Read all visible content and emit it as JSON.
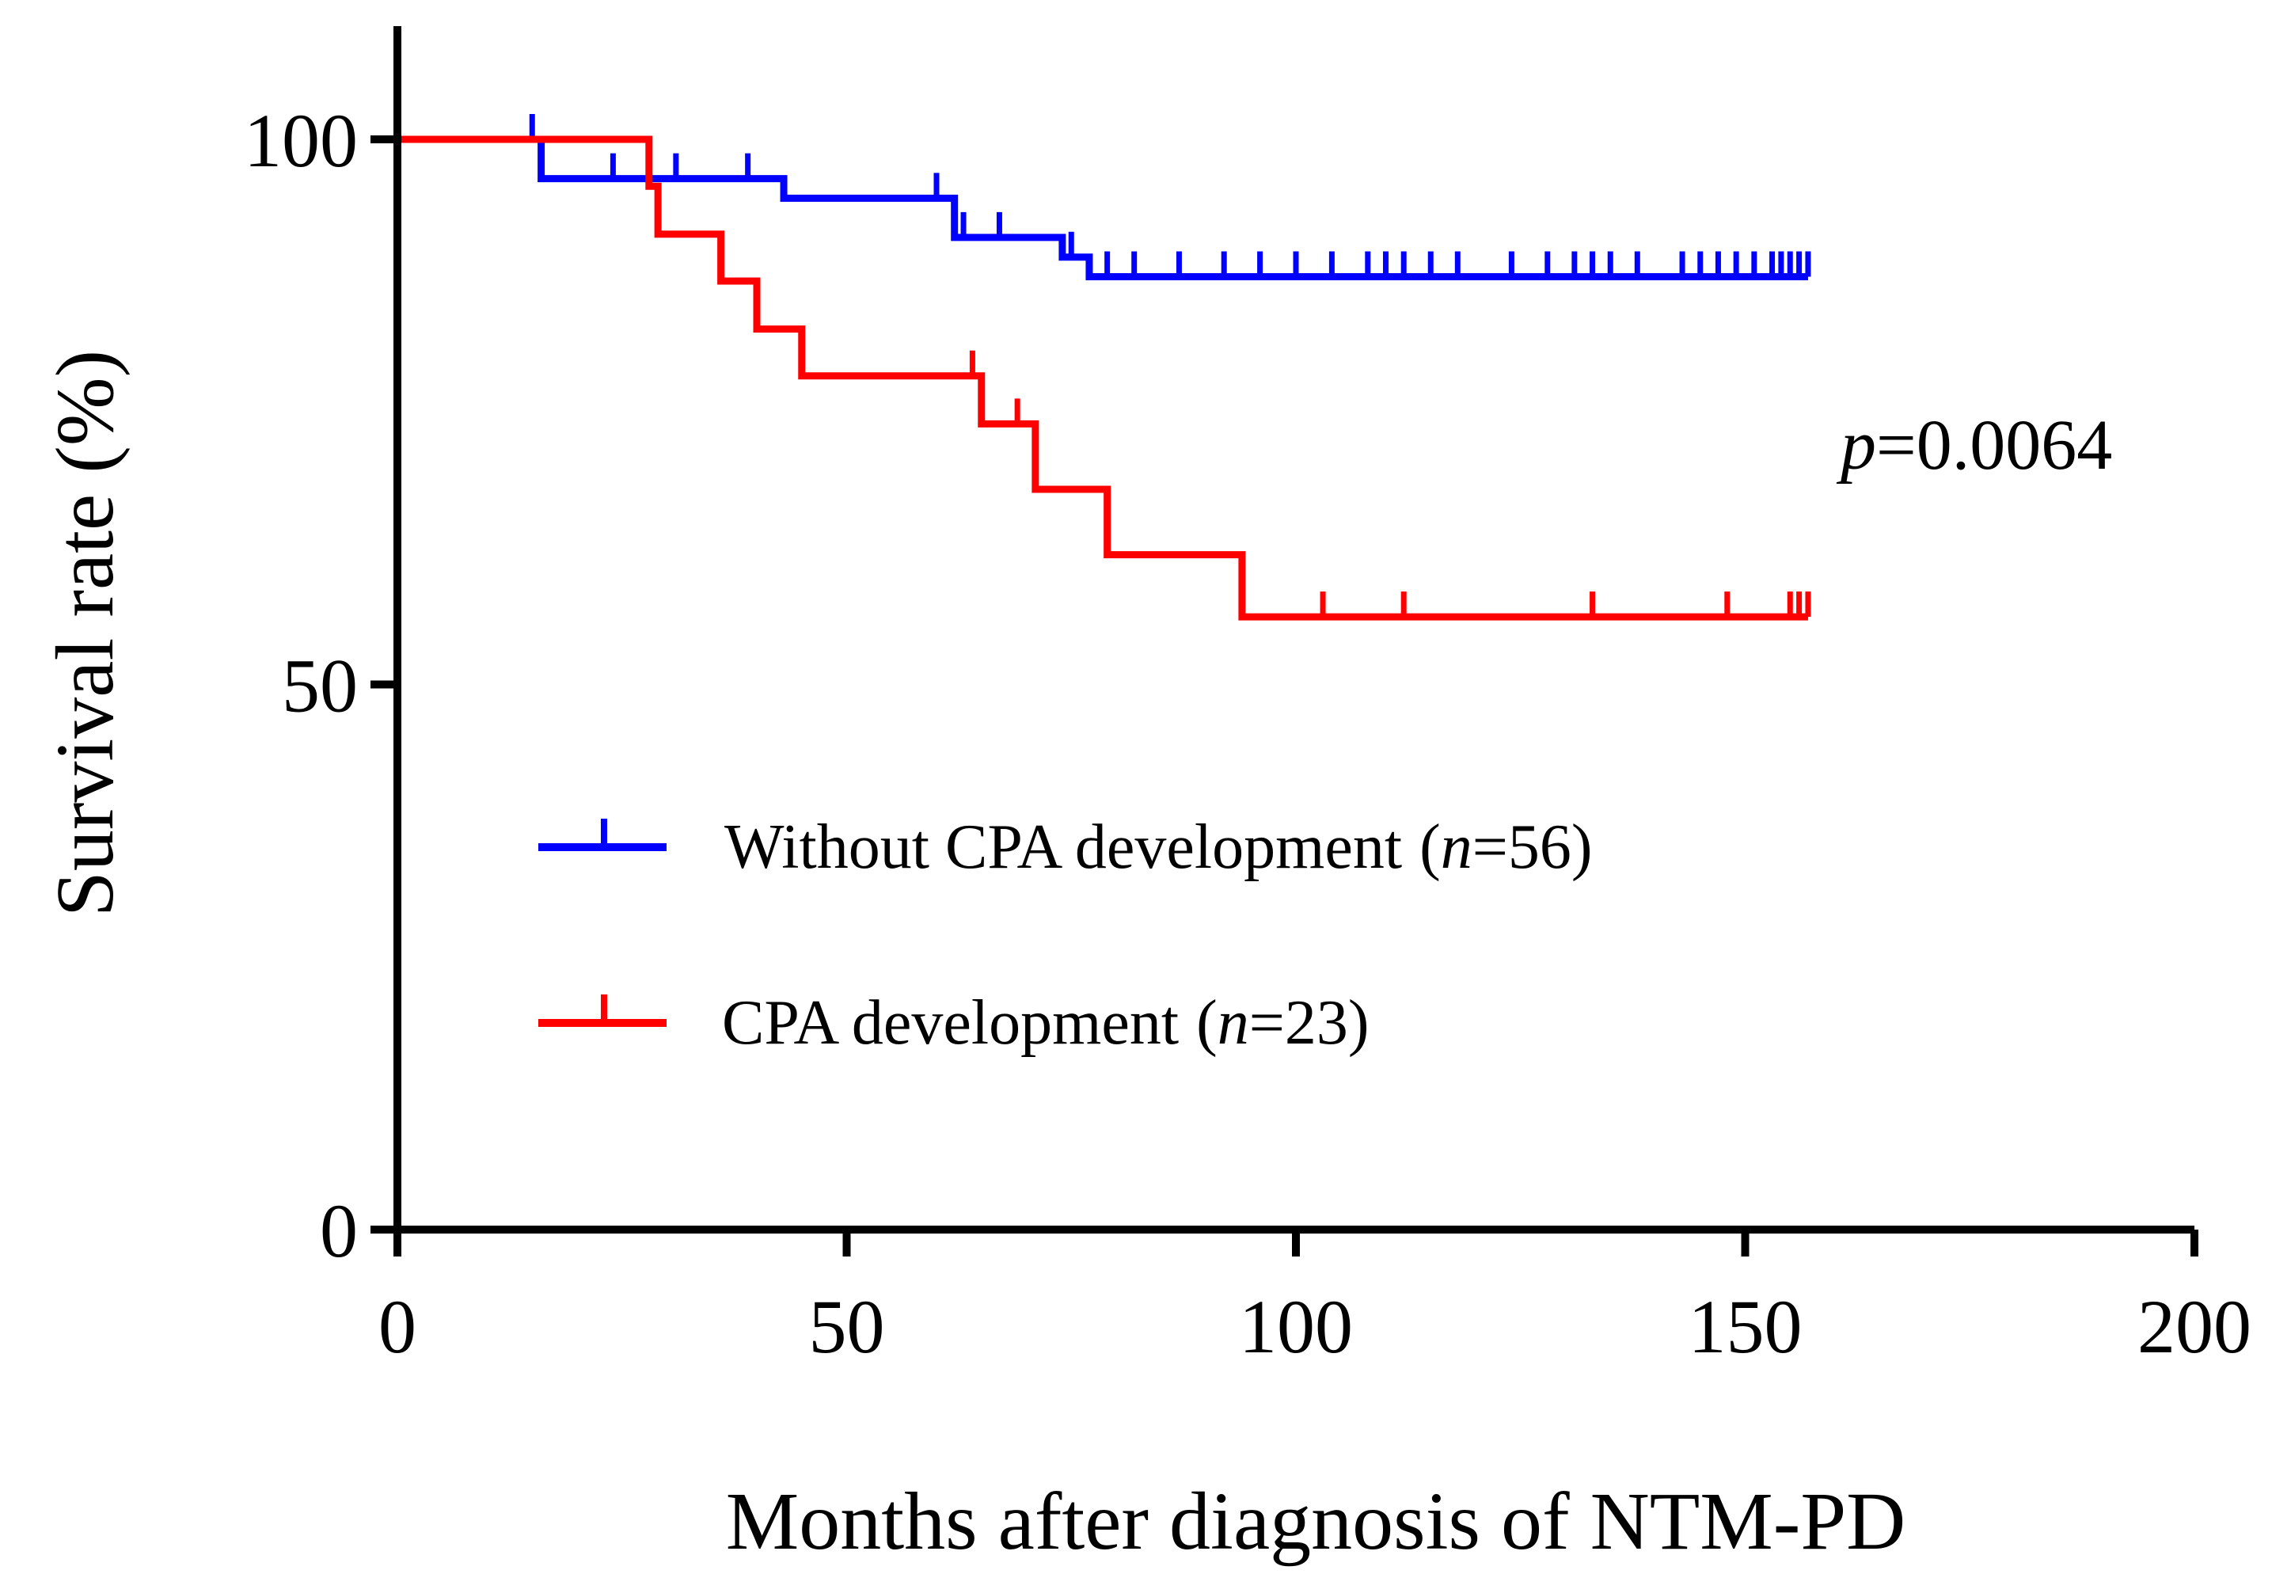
{
  "chart_data": {
    "type": "line",
    "subtype": "kaplan-meier",
    "title": "",
    "xlabel": "Months after diagnosis of NTM-PD",
    "ylabel": "Survival rate (%)",
    "xlim": [
      0,
      200
    ],
    "ylim": [
      0,
      100
    ],
    "x_ticks": [
      0,
      50,
      100,
      150,
      200
    ],
    "y_ticks": [
      0,
      50,
      100
    ],
    "grid": false,
    "legend_position": "center-left",
    "annotation": {
      "italic": "p",
      "text": "=0.0064"
    },
    "series": [
      {
        "name": "Without CPA development",
        "legend_main": "Without CPA development",
        "legend_n_label": "n",
        "legend_n_value": "=56)",
        "color": "#0000ff",
        "steps": [
          [
            0,
            100
          ],
          [
            16,
            96.4
          ],
          [
            43,
            94.6
          ],
          [
            62,
            91.0
          ],
          [
            74,
            89.2
          ],
          [
            77,
            87.4
          ],
          [
            157,
            87.4
          ]
        ],
        "censored": [
          15,
          24,
          31,
          39,
          60,
          63,
          67,
          75,
          79,
          82,
          87,
          92,
          96,
          100,
          104,
          108,
          110,
          112,
          115,
          118,
          124,
          128,
          131,
          133,
          135,
          138,
          143,
          145,
          147,
          149,
          151,
          153,
          154,
          155,
          156,
          157
        ]
      },
      {
        "name": "CPA development",
        "legend_main": "CPA development",
        "legend_n_label": "n",
        "legend_n_value": "=23)",
        "color": "#ff0000",
        "steps": [
          [
            0,
            100
          ],
          [
            28,
            95.7
          ],
          [
            29,
            91.3
          ],
          [
            36,
            87.0
          ],
          [
            40,
            82.6
          ],
          [
            45,
            78.3
          ],
          [
            65,
            73.9
          ],
          [
            71,
            67.9
          ],
          [
            79,
            61.9
          ],
          [
            94,
            56.2
          ],
          [
            157,
            56.2
          ]
        ],
        "censored": [
          64,
          69,
          103,
          112,
          133,
          148,
          155,
          156,
          157
        ]
      }
    ]
  }
}
